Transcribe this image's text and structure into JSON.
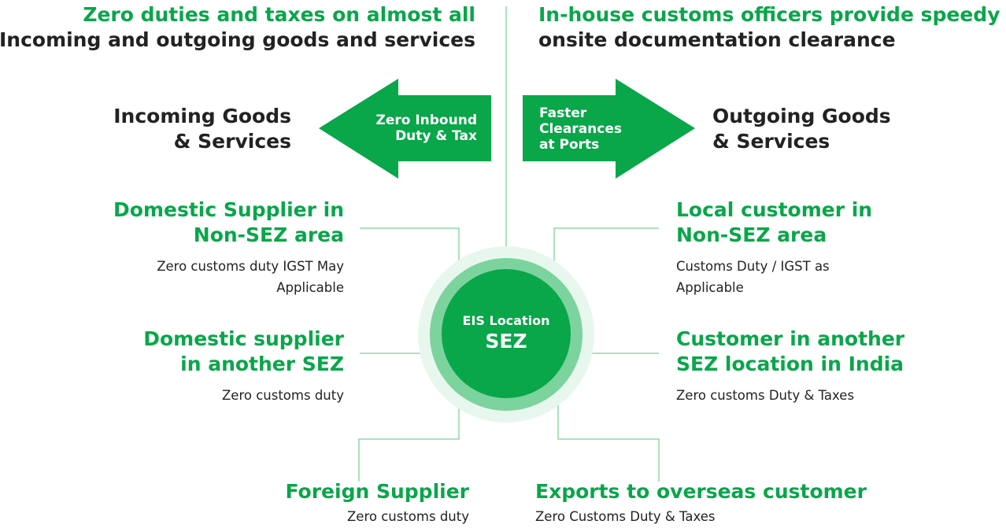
{
  "top_left": {
    "line1": "Zero duties and taxes on almost all",
    "line2": "Incoming and outgoing goods and services"
  },
  "top_right": {
    "line1": "In-house customs officers provide speedy",
    "line2": "onsite documentation clearance"
  },
  "incoming": {
    "line1": "Incoming Goods",
    "line2": "& Services"
  },
  "outgoing": {
    "line1": "Outgoing Goods",
    "line2": "& Services"
  },
  "left_arrow": {
    "line1": "Zero Inbound",
    "line2": "Duty & Tax"
  },
  "right_arrow": {
    "line1": "Faster",
    "line2": "Clearances",
    "line3": "at Ports"
  },
  "center": {
    "label": "EIS Location",
    "title": "SEZ"
  },
  "left_nodes": [
    {
      "title1": "Domestic Supplier in",
      "title2": "Non-SEZ area",
      "desc1": "Zero customs duty IGST May",
      "desc2": "Applicable"
    },
    {
      "title1": "Domestic supplier",
      "title2": "in another SEZ",
      "desc1": "Zero customs duty"
    }
  ],
  "right_nodes": [
    {
      "title1": "Local customer in",
      "title2": "Non-SEZ area",
      "desc1": "Customs Duty / IGST as",
      "desc2": "Applicable"
    },
    {
      "title1": "Customer in another",
      "title2": "SEZ location in India",
      "desc1": "Zero customs Duty & Taxes"
    }
  ],
  "bottom_left": {
    "title": "Foreign Supplier",
    "desc": "Zero customs duty"
  },
  "bottom_right": {
    "title": "Exports to overseas customer",
    "desc": "Zero Customs Duty & Taxes"
  },
  "colors": {
    "accent": "#09a64a",
    "text": "#222222",
    "line": "#7cd39d"
  }
}
